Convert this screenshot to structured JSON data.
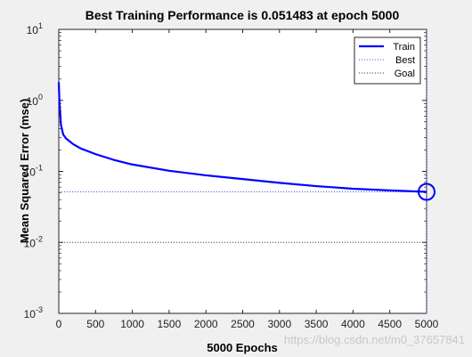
{
  "chart_data": {
    "type": "line",
    "title": "Best Training Performance is 0.051483 at epoch 5000",
    "xlabel": "5000 Epochs",
    "ylabel": "Mean Squared Error  (mse)",
    "xlim": [
      0,
      5000
    ],
    "ylim": [
      0.001,
      10
    ],
    "yscale": "log",
    "x_ticks": [
      "0",
      "500",
      "1000",
      "1500",
      "2000",
      "2500",
      "3000",
      "3500",
      "4000",
      "4500",
      "5000"
    ],
    "y_ticks": [
      {
        "base": "10",
        "exp": "-3",
        "value": 0.001
      },
      {
        "base": "10",
        "exp": "-2",
        "value": 0.01
      },
      {
        "base": "10",
        "exp": "-1",
        "value": 0.1
      },
      {
        "base": "10",
        "exp": "0",
        "value": 1
      },
      {
        "base": "10",
        "exp": "1",
        "value": 10
      }
    ],
    "grid": false,
    "legend_position": "top-right",
    "series": [
      {
        "name": "Train",
        "color": "#0000ff",
        "style": "solid",
        "x": [
          0,
          10,
          30,
          60,
          100,
          200,
          300,
          500,
          750,
          1000,
          1500,
          2000,
          2500,
          3000,
          3500,
          4000,
          4500,
          5000
        ],
        "y": [
          1.8,
          0.9,
          0.45,
          0.33,
          0.29,
          0.24,
          0.21,
          0.175,
          0.145,
          0.125,
          0.102,
          0.088,
          0.078,
          0.069,
          0.062,
          0.057,
          0.054,
          0.051483
        ]
      },
      {
        "name": "Best",
        "color": "#4a4aff",
        "style": "dotted",
        "best_epoch": 5000,
        "best_value": 0.051483
      },
      {
        "name": "Goal",
        "color": "#333333",
        "style": "dotted",
        "value": 0.01
      }
    ],
    "best_marker": {
      "x": 5000,
      "y": 0.051483,
      "color": "#0000ff",
      "shape": "circle"
    }
  },
  "watermark": "https://blog.csdn.net/m0_37657841"
}
